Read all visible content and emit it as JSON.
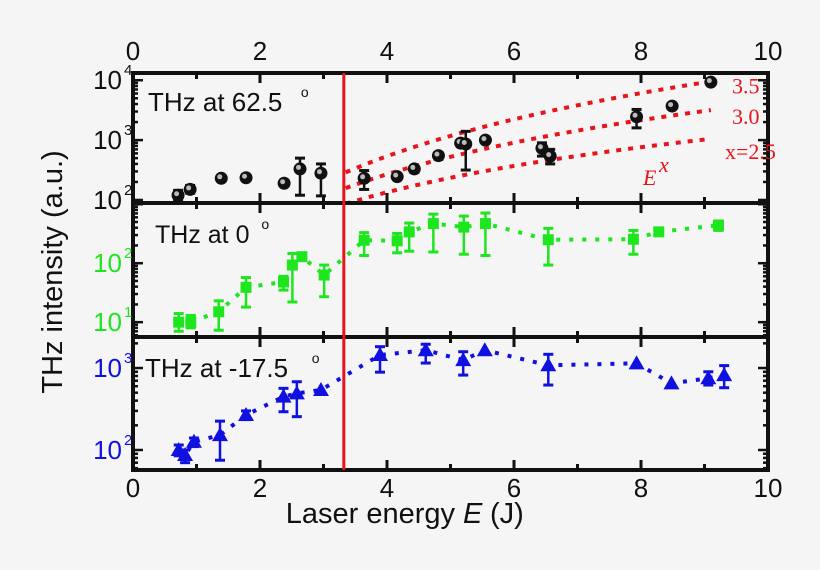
{
  "chart_data": {
    "type": "scatter",
    "layout": "three vertically stacked panels sharing x axis, log y scales",
    "xlabel": "Laser energy",
    "xlabel_var": "E",
    "xlabel_unit": "(J)",
    "ylabel": "THz intensity (a.u.)",
    "xlim": [
      0,
      10
    ],
    "xticks": [
      "0",
      "2",
      "4",
      "6",
      "8",
      "10"
    ],
    "yscale": "log",
    "grid": false,
    "threshold_line": {
      "x": 3.32,
      "color": "#e8141c"
    },
    "panels": [
      {
        "label": "THz at 62.5",
        "label_sup": "o",
        "color": "#111111",
        "marker": "circle",
        "ylim": [
          89,
          13200
        ],
        "yticks": [
          {
            "base": "10",
            "exp": "2",
            "v": 100
          },
          {
            "base": "10",
            "exp": "3",
            "v": 1000
          },
          {
            "base": "10",
            "exp": "4",
            "v": 10000
          }
        ],
        "points": [
          [
            0.71,
            120,
            100,
            145
          ],
          [
            0.9,
            150,
            130,
            175
          ],
          [
            1.39,
            230,
            210,
            250
          ],
          [
            1.78,
            235,
            235,
            235
          ],
          [
            2.38,
            190,
            175,
            205
          ],
          [
            2.63,
            330,
            120,
            500
          ],
          [
            2.96,
            280,
            117,
            400
          ],
          [
            3.64,
            230,
            150,
            310
          ],
          [
            4.16,
            245,
            245,
            245
          ],
          [
            4.43,
            330,
            290,
            370
          ],
          [
            4.81,
            550,
            480,
            620
          ],
          [
            5.16,
            890,
            800,
            980
          ],
          [
            5.24,
            860,
            316,
            1400
          ],
          [
            5.55,
            1000,
            1000,
            1000
          ],
          [
            6.44,
            730,
            540,
            900
          ],
          [
            6.57,
            540,
            400,
            700
          ],
          [
            7.93,
            2450,
            1600,
            3250
          ],
          [
            8.49,
            3700,
            3700,
            3700
          ],
          [
            9.1,
            9300,
            9300,
            9300
          ]
        ],
        "fits": {
          "prefactor": 4.2,
          "E_range": [
            3.35,
            9.1
          ],
          "color": "#e8141c",
          "exponents": [
            3.5,
            3.0,
            2.5
          ],
          "labels": [
            "3.5",
            "3.0",
            "x=2.5"
          ],
          "formula_base": "E",
          "formula_exp": "x"
        }
      },
      {
        "label": "THz at 0",
        "label_sup": "o",
        "color": "#1ee61e",
        "marker": "square",
        "connector": "dotted",
        "ylim": [
          5.6,
          1050
        ],
        "yticks": [
          {
            "base": "10",
            "exp": "1",
            "v": 10
          },
          {
            "base": "10",
            "exp": "2",
            "v": 100
          }
        ],
        "points": [
          [
            0.72,
            10,
            7,
            14
          ],
          [
            0.91,
            10,
            8,
            13
          ],
          [
            1.35,
            15,
            7.3,
            23
          ],
          [
            1.78,
            39,
            18,
            57
          ],
          [
            2.37,
            48,
            35,
            60
          ],
          [
            2.51,
            93,
            22,
            146
          ],
          [
            2.66,
            129,
            129,
            129
          ],
          [
            3.01,
            63,
            27,
            93
          ],
          [
            3.64,
            245,
            135,
            330
          ],
          [
            4.16,
            240,
            150,
            320
          ],
          [
            4.35,
            340,
            160,
            480
          ],
          [
            4.73,
            470,
            155,
            680
          ],
          [
            5.21,
            410,
            142,
            630
          ],
          [
            5.55,
            470,
            135,
            710
          ],
          [
            6.54,
            250,
            93,
            390
          ],
          [
            7.88,
            255,
            142,
            360
          ],
          [
            8.28,
            340,
            340,
            340
          ],
          [
            9.22,
            440,
            360,
            520
          ]
        ]
      },
      {
        "label": "THz at -17.5",
        "label_sup": "o",
        "color": "#1010e0",
        "marker": "triangle",
        "connector": "dotted",
        "ylim": [
          57,
          2390
        ],
        "yticks": [
          {
            "base": "10",
            "exp": "2",
            "v": 100
          },
          {
            "base": "10",
            "exp": "3",
            "v": 1000
          }
        ],
        "points": [
          [
            0.72,
            100,
            85,
            115
          ],
          [
            0.82,
            87,
            70,
            100
          ],
          [
            0.96,
            126,
            110,
            140
          ],
          [
            1.37,
            152,
            75,
            225
          ],
          [
            1.78,
            267,
            235,
            300
          ],
          [
            2.37,
            447,
            293,
            565
          ],
          [
            2.58,
            490,
            255,
            680
          ],
          [
            2.96,
            540,
            540,
            540
          ],
          [
            3.89,
            1440,
            890,
            1820
          ],
          [
            4.61,
            1650,
            1150,
            1950
          ],
          [
            5.2,
            1250,
            820,
            1580
          ],
          [
            5.54,
            1650,
            1650,
            1650
          ],
          [
            6.54,
            1080,
            620,
            1470
          ],
          [
            7.93,
            1140,
            1140,
            1140
          ],
          [
            8.48,
            650,
            650,
            650
          ],
          [
            9.06,
            750,
            620,
            900
          ],
          [
            9.31,
            820,
            575,
            1070
          ]
        ]
      }
    ]
  }
}
